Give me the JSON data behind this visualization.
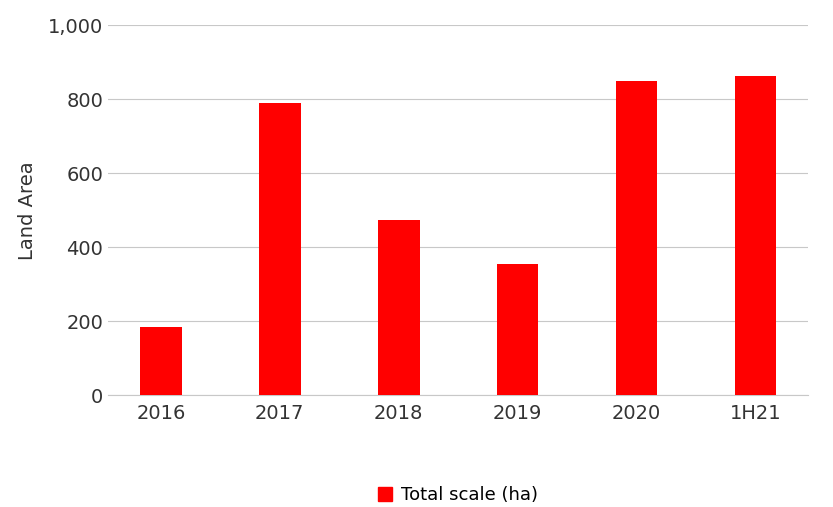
{
  "categories": [
    "2016",
    "2017",
    "2018",
    "2019",
    "2020",
    "1H21"
  ],
  "values": [
    185,
    790,
    475,
    355,
    850,
    862
  ],
  "bar_color": "#ff0000",
  "ylabel": "Land Area",
  "ylim": [
    0,
    1000
  ],
  "ytick_values": [
    0,
    200,
    400,
    600,
    800,
    1000
  ],
  "ytick_labels": [
    "0",
    "200",
    "400",
    "600",
    "800",
    "1,000"
  ],
  "legend_label": "Total scale (ha)",
  "background_color": "#ffffff",
  "grid_color": "#c8c8c8",
  "tick_fontsize": 14,
  "label_fontsize": 14,
  "legend_fontsize": 13,
  "bar_width": 0.35
}
